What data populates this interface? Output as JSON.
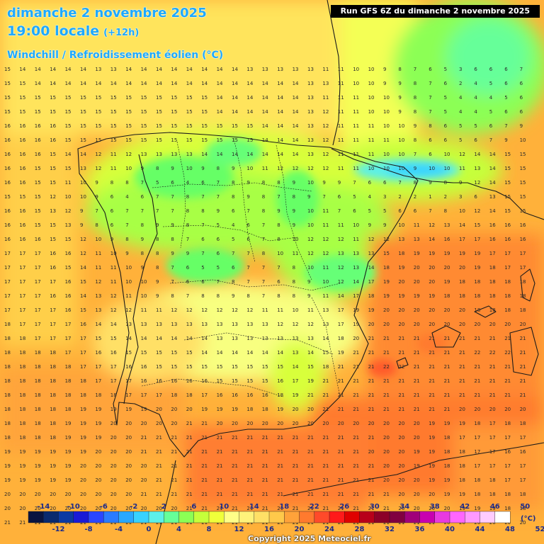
{
  "header": {
    "date": "dimanche 2 novembre 2025",
    "time": "19:00 locale",
    "offset": "(+12h)",
    "parameter": "Windchill / Refroidissement éolien (°C)"
  },
  "run_label": "Run GFS 6Z du dimanche 2 novembre 2025",
  "copyright": "Copyright 2025 Meteociel.fr",
  "legend": {
    "unit": "(°C)",
    "top_labels": [
      "-14",
      "-10",
      "-6",
      "-2",
      "2",
      "6",
      "10",
      "14",
      "18",
      "22",
      "26",
      "30",
      "34",
      "38",
      "42",
      "46",
      "50"
    ],
    "bottom_labels": [
      "-12",
      "-8",
      "-4",
      "0",
      "4",
      "8",
      "12",
      "16",
      "20",
      "24",
      "28",
      "32",
      "36",
      "40",
      "44",
      "48",
      "52"
    ],
    "colors": [
      "#0a1440",
      "#0a2a6e",
      "#0b3aa3",
      "#1a1ad6",
      "#2a46ff",
      "#2a7bff",
      "#2aa8ff",
      "#38d2ff",
      "#5cf0e8",
      "#66ff99",
      "#8cff55",
      "#c6ff3a",
      "#f0ff3a",
      "#ffff88",
      "#fff27a",
      "#ffe066",
      "#ffc94a",
      "#ffa23a",
      "#ff7a2e",
      "#ff4a2a",
      "#ff1a1a",
      "#e00000",
      "#b8001a",
      "#8c0028",
      "#800040",
      "#a0007a",
      "#c800b0",
      "#e83ae0",
      "#ff66ff",
      "#ff99ff",
      "#ffccff",
      "#ffffff"
    ]
  },
  "field": {
    "grid_value_rows": [
      "15 14 14 14 14 14 13 13 14 14 14 14 14 14 14 14 13 13 13 13 13 11 11 10 10 9 8 7 6 5 3 6 6 6 7",
      "15 15 14 14 14 14 14 14 14 14 14 14 14 14 14 14 14 14 14 14 13 13 11 10 10 9 9 8 7 6 2 4 5 6 6",
      "15 15 15 15 15 15 15 15 15 15 15 15 15 15 14 14 14 14 14 14 13 11 11 11 10 10 9 8 7 5 4 4 4 5 6",
      "15 15 15 15 15 15 15 15 15 15 15 15 15 15 14 14 14 14 14 14 13 12 11 11 10 10 9 8 7 5 4 4 5 6 6",
      "16 16 16 16 15 15 15 15 15 15 15 15 15 15 15 15 15 14 14 14 13 12 11 11 11 10 10 9 8 6 5 5 6 7 9",
      "16 16 16 16 15 15 15 15 15 15 15 15 15 15 15 15 15 14 14 14 13 12 11 11 11 11 10 8 6 6 5 6 7 9 10",
      "16 16 16 15 14 14 12 11 12 13 13 13 13 14 14 14 14 14 14 14 13 12 11 11 11 10 10 7 6 10 12 14 14 15 15",
      "16 16 15 15 15 13 12 11 10 9 8 9 10 9 8 9 10 11 12 12 12 12 11 11 10 10 10 9 10 10 11 13 14 15 15",
      "16 16 15 15 11 10 9 8 8 7 5 6 4 6 7 8 9 8 8 9 10 9 9 7 6 6 7 8 9 8 9 12 14 15 15",
      "15 15 15 12 10 10 9 6 4 6 7 7 8 7 7 8 9 8 7 8 9 7 6 5 4 3 2 2 1 2 3 6 13 15 15",
      "16 16 15 13 12 9 7 6 7 7 7 7 8 8 9 6 7 8 9 9 10 11 7 6 5 5 6 6 7 8 10 12 14 15 15",
      "16 16 15 15 13 9 8 6 7 8 9 9 8 7 5 4 6 7 8 9 10 11 11 10 9 9 10 11 12 13 14 15 16 16 16",
      "16 16 16 15 15 12 10 9 8 9 8 8 7 6 6 5 6 7 8 10 12 12 12 11 12 12 13 13 14 16 17 17 16 16 16",
      "17 17 17 16 16 12 11 10 9 8 8 9 9 7 6 7 7 8 10 11 12 12 13 13 13 15 18 19 19 19 19 19 17 17 17",
      "17 17 17 16 15 14 11 11 10 9 8 7 6 5 5 6 7 7 7 8 10 11 12 13 14 18 19 20 20 20 20 19 18 17 17",
      "17 17 17 17 16 15 12 11 10 10 9 7 6 6 7 8 7 7 6 8 9 10 12 14 17 19 20 20 20 19 18 18 18 18 18",
      "17 17 17 16 16 14 13 12 11 10 9 8 7 8 8 9 8 7 8 8 9 11 14 17 18 19 19 19 19 18 18 18 18 18 18",
      "17 17 17 17 16 15 13 12 12 11 11 12 12 12 12 12 12 11 11 10 11 13 17 19 19 20 20 20 20 20 20 18 18 18 18",
      "18 17 17 17 17 16 14 14 13 13 13 13 13 13 13 13 13 13 12 12 12 13 17 19 20 20 20 20 20 20 20 20 20 20 20",
      "18 18 17 17 17 17 15 15 14 14 14 14 14 14 13 13 13 13 13 13 13 14 18 20 21 21 21 21 21 21 21 21 21 21 21",
      "18 18 18 18 17 17 16 16 15 15 15 15 15 14 14 14 14 14 14 13 14 15 19 21 21 21 21 21 21 21 21 22 22 22 21",
      "18 18 18 18 18 17 17 17 16 16 15 15 15 15 15 15 15 15 15 14 15 18 21 21 21 22 22 21 21 21 21 21 21 21 21",
      "18 18 18 18 18 18 17 17 17 16 16 16 16 16 15 15 15 15 16 17 19 21 21 21 21 21 21 21 21 21 21 21 21 21 21",
      "18 18 18 18 18 18 18 18 17 17 17 18 18 17 16 16 16 16 18 19 21 21 21 21 21 21 21 21 21 21 21 21 21 21 21",
      "18 18 18 18 18 19 19 19 19 19 20 20 20 19 19 19 18 18 19 20 20 21 21 21 21 21 21 21 21 21 20 20 20 20 20",
      "18 18 18 18 19 19 19 20 20 20 20 20 21 21 20 20 20 20 20 20 20 20 20 20 20 20 20 20 19 19 19 18 17 18 18",
      "18 18 18 18 19 19 19 20 20 21 21 21 21 21 21 21 21 21 21 21 21 21 21 21 21 20 20 20 19 18 17 17 17 17 17",
      "19 19 19 19 19 19 20 20 20 21 21 21 21 21 21 21 21 21 21 21 21 21 21 21 20 20 20 19 19 18 18 17 17 16 16",
      "19 19 19 19 19 20 20 20 20 20 21 21 21 21 21 21 21 21 21 21 21 21 21 21 21 20 20 19 19 18 18 17 17 17 17",
      "19 19 19 19 19 20 20 20 20 20 21 21 21 21 21 21 21 21 21 21 21 21 21 21 21 20 20 20 19 19 18 18 18 17 17",
      "20 20 20 20 20 20 20 20 20 21 21 21 21 21 21 21 21 21 21 21 21 21 21 21 21 21 20 20 20 19 19 18 18 18 18",
      "20 20 20 20 20 20 20 20 20 20 20 20 21 21 21 21 21 21 21 21 21 21 21 21 21 21 20 20 20 20 19 19 19 18 18",
      "21 21 21 21 21 21 21 21 21 21 21 21 21 21 21 21 21 21 21 21 21 21 21 21 21 21 21 21 21 20 20 20 20 20 20"
    ]
  }
}
